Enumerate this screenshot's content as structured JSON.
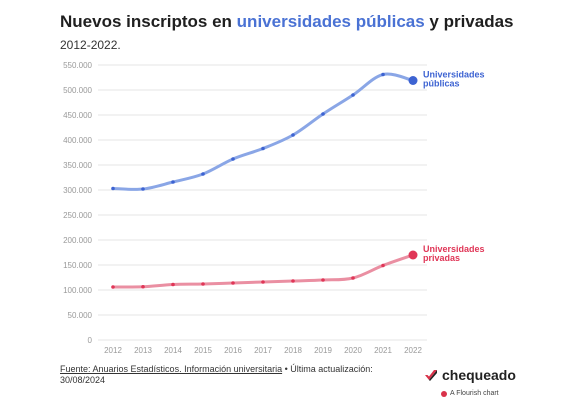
{
  "header": {
    "title_prefix": "Nuevos inscriptos en ",
    "title_highlight": "universidades públicas",
    "title_suffix": " y privadas",
    "subtitle": "2012-2022."
  },
  "footer": {
    "source_link": "Fuente: Anuarios Estadísticos. Información universitaria",
    "source_rest": " • Última actualización: 30/08/2024",
    "brand_name": "chequeado",
    "flourish_label": "A Flourish chart"
  },
  "colors": {
    "publicas": "#8aa6e6",
    "publicas_point": "#3d63d2",
    "privadas": "#ea8fa2",
    "privadas_point": "#e03657",
    "grid": "#e6e6e6",
    "axis_text": "#999999"
  },
  "chart_data": {
    "type": "line",
    "title": "Nuevos inscriptos en universidades públicas y privadas",
    "subtitle": "2012-2022.",
    "x": [
      "2012",
      "2013",
      "2014",
      "2015",
      "2016",
      "2017",
      "2018",
      "2019",
      "2020",
      "2021",
      "2022"
    ],
    "ylim": [
      0,
      550000
    ],
    "yticks": [
      0,
      50000,
      100000,
      150000,
      200000,
      250000,
      300000,
      350000,
      400000,
      450000,
      500000,
      550000
    ],
    "ytick_labels": [
      "0",
      "50.000",
      "100.000",
      "150.000",
      "200.000",
      "250.000",
      "300.000",
      "350.000",
      "400.000",
      "450.000",
      "500.000",
      "550.000"
    ],
    "grid": true,
    "legend": "direct labels at line ends (right)",
    "series": [
      {
        "name": "Universidades públicas",
        "label_lines": [
          "Universidades",
          "públicas"
        ],
        "values": [
          303000,
          302000,
          316000,
          332000,
          362000,
          383000,
          410000,
          452000,
          490000,
          531000,
          519000
        ]
      },
      {
        "name": "Universidades privadas",
        "label_lines": [
          "Universidades",
          "privadas"
        ],
        "values": [
          106000,
          106500,
          111000,
          112000,
          114000,
          116000,
          118000,
          120000,
          124000,
          149000,
          170000
        ]
      }
    ]
  }
}
